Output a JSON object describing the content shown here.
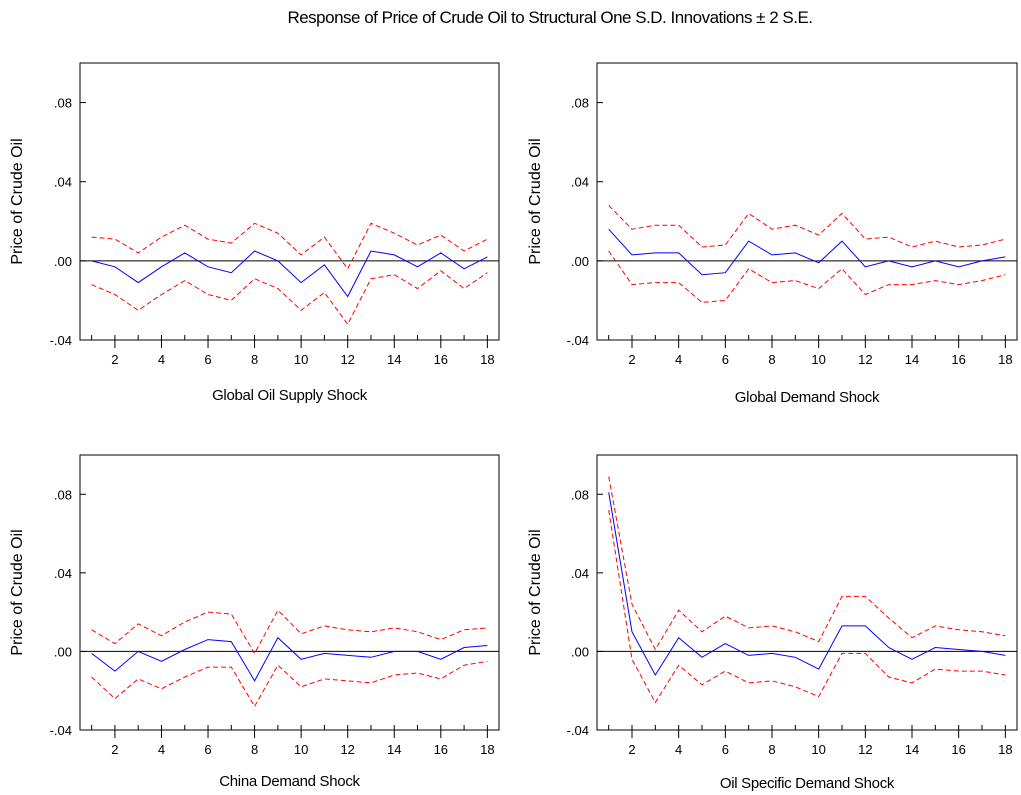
{
  "figure_title": "Response of Price of Crude Oil to Structural One S.D. Innovations ± 2 S.E.",
  "colors": {
    "response": "#0000ff",
    "bands": "#ff0000",
    "zero_line": "#000000"
  },
  "chart_data": [
    {
      "type": "line",
      "title": "Global Oil Supply Shock",
      "ylabel": "Price of Crude Oil",
      "xlabel": "",
      "x": [
        1,
        2,
        3,
        4,
        5,
        6,
        7,
        8,
        9,
        10,
        11,
        12,
        13,
        14,
        15,
        16,
        17,
        18
      ],
      "xticks": [
        2,
        4,
        6,
        8,
        10,
        12,
        14,
        16,
        18
      ],
      "yticks": [
        -0.04,
        0.0,
        0.04,
        0.08
      ],
      "ytick_labels": [
        "-.04",
        ".00",
        ".04",
        ".08"
      ],
      "ylim": [
        -0.04,
        0.1
      ],
      "series": [
        {
          "values": [
            0.0,
            -0.003,
            -0.011,
            -0.003,
            0.004,
            -0.003,
            -0.006,
            0.005,
            0.0,
            -0.011,
            -0.002,
            -0.018,
            0.005,
            0.003,
            -0.003,
            0.004,
            -0.004,
            0.002
          ]
        },
        {
          "values": [
            0.012,
            0.011,
            0.004,
            0.012,
            0.018,
            0.011,
            0.009,
            0.019,
            0.014,
            0.003,
            0.012,
            -0.004,
            0.019,
            0.014,
            0.008,
            0.013,
            0.005,
            0.011
          ]
        },
        {
          "values": [
            -0.012,
            -0.017,
            -0.025,
            -0.017,
            -0.01,
            -0.017,
            -0.02,
            -0.009,
            -0.014,
            -0.025,
            -0.016,
            -0.032,
            -0.009,
            -0.007,
            -0.014,
            -0.005,
            -0.014,
            -0.006
          ]
        }
      ]
    },
    {
      "type": "line",
      "title": "Global Demand Shock",
      "ylabel": "Price of Crude Oil",
      "xlabel": "",
      "x": [
        1,
        2,
        3,
        4,
        5,
        6,
        7,
        8,
        9,
        10,
        11,
        12,
        13,
        14,
        15,
        16,
        17,
        18
      ],
      "xticks": [
        2,
        4,
        6,
        8,
        10,
        12,
        14,
        16,
        18
      ],
      "yticks": [
        -0.04,
        0.0,
        0.04,
        0.08
      ],
      "ytick_labels": [
        "-.04",
        ".00",
        ".04",
        ".08"
      ],
      "ylim": [
        -0.04,
        0.1
      ],
      "series": [
        {
          "values": [
            0.016,
            0.003,
            0.004,
            0.004,
            -0.007,
            -0.006,
            0.01,
            0.003,
            0.004,
            -0.001,
            0.01,
            -0.003,
            0.0,
            -0.003,
            0.0,
            -0.003,
            0.0,
            0.002
          ]
        },
        {
          "values": [
            0.028,
            0.016,
            0.018,
            0.018,
            0.007,
            0.008,
            0.024,
            0.016,
            0.018,
            0.013,
            0.024,
            0.011,
            0.012,
            0.007,
            0.01,
            0.007,
            0.008,
            0.011
          ]
        },
        {
          "values": [
            0.005,
            -0.012,
            -0.011,
            -0.011,
            -0.021,
            -0.02,
            -0.004,
            -0.011,
            -0.01,
            -0.014,
            -0.004,
            -0.017,
            -0.012,
            -0.012,
            -0.01,
            -0.012,
            -0.01,
            -0.007
          ]
        }
      ]
    },
    {
      "type": "line",
      "title": "China Demand Shock",
      "ylabel": "Price of Crude Oil",
      "xlabel": "",
      "x": [
        1,
        2,
        3,
        4,
        5,
        6,
        7,
        8,
        9,
        10,
        11,
        12,
        13,
        14,
        15,
        16,
        17,
        18
      ],
      "xticks": [
        2,
        4,
        6,
        8,
        10,
        12,
        14,
        16,
        18
      ],
      "yticks": [
        -0.04,
        0.0,
        0.04,
        0.08
      ],
      "ytick_labels": [
        "-.04",
        ".00",
        ".04",
        ".08"
      ],
      "ylim": [
        -0.04,
        0.1
      ],
      "series": [
        {
          "values": [
            -0.001,
            -0.01,
            0.0,
            -0.005,
            0.001,
            0.006,
            0.005,
            -0.015,
            0.007,
            -0.004,
            -0.001,
            -0.002,
            -0.003,
            0.0,
            0.0,
            -0.004,
            0.002,
            0.003
          ]
        },
        {
          "values": [
            0.011,
            0.004,
            0.014,
            0.008,
            0.015,
            0.02,
            0.019,
            -0.001,
            0.021,
            0.009,
            0.013,
            0.011,
            0.01,
            0.012,
            0.01,
            0.006,
            0.011,
            0.012
          ]
        },
        {
          "values": [
            -0.013,
            -0.024,
            -0.014,
            -0.019,
            -0.013,
            -0.008,
            -0.008,
            -0.028,
            -0.007,
            -0.018,
            -0.014,
            -0.015,
            -0.016,
            -0.012,
            -0.011,
            -0.014,
            -0.007,
            -0.005
          ]
        }
      ]
    },
    {
      "type": "line",
      "title": "Oil Specific Demand Shock",
      "ylabel": "Price of Crude Oil",
      "xlabel": "",
      "x": [
        1,
        2,
        3,
        4,
        5,
        6,
        7,
        8,
        9,
        10,
        11,
        12,
        13,
        14,
        15,
        16,
        17,
        18
      ],
      "xticks": [
        2,
        4,
        6,
        8,
        10,
        12,
        14,
        16,
        18
      ],
      "yticks": [
        -0.04,
        0.0,
        0.04,
        0.08
      ],
      "ytick_labels": [
        "-.04",
        ".00",
        ".04",
        ".08"
      ],
      "ylim": [
        -0.04,
        0.1
      ],
      "series": [
        {
          "values": [
            0.081,
            0.01,
            -0.012,
            0.007,
            -0.003,
            0.004,
            -0.002,
            -0.001,
            -0.003,
            -0.009,
            0.013,
            0.013,
            0.002,
            -0.004,
            0.002,
            0.001,
            0.0,
            -0.002
          ]
        },
        {
          "values": [
            0.089,
            0.024,
            0.001,
            0.021,
            0.01,
            0.018,
            0.012,
            0.013,
            0.01,
            0.005,
            0.028,
            0.028,
            0.017,
            0.007,
            0.013,
            0.011,
            0.01,
            0.008
          ]
        },
        {
          "values": [
            0.072,
            -0.004,
            -0.026,
            -0.007,
            -0.017,
            -0.01,
            -0.016,
            -0.015,
            -0.018,
            -0.023,
            -0.001,
            -0.001,
            -0.013,
            -0.016,
            -0.009,
            -0.01,
            -0.01,
            -0.012
          ]
        }
      ]
    }
  ]
}
